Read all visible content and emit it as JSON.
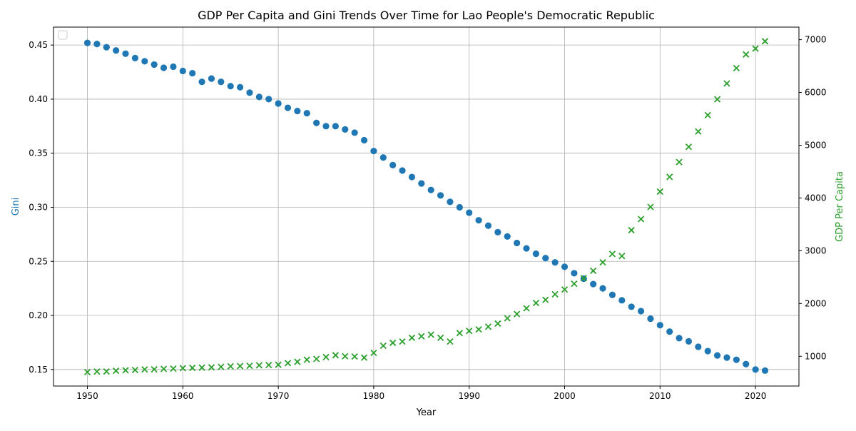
{
  "chart_data": {
    "type": "scatter",
    "title": "GDP Per Capita and Gini Trends Over Time for Lao People's Democratic Republic",
    "xlabel": "Year",
    "ylabel_left": "Gini",
    "ylabel_right": "GDP Per Capita",
    "xlim": [
      1946.45,
      2024.55
    ],
    "ylim_left": [
      0.1347,
      0.4666
    ],
    "ylim_right": [
      436,
      7238
    ],
    "x_ticks": [
      1950,
      1960,
      1970,
      1980,
      1990,
      2000,
      2010,
      2020
    ],
    "y_left_ticks": [
      0.15,
      0.2,
      0.25,
      0.3,
      0.35,
      0.4,
      0.45
    ],
    "y_right_ticks": [
      1000,
      2000,
      3000,
      4000,
      5000,
      6000,
      7000
    ],
    "grid": true,
    "legend": "top-left (empty)",
    "x": [
      1950,
      1951,
      1952,
      1953,
      1954,
      1955,
      1956,
      1957,
      1958,
      1959,
      1960,
      1961,
      1962,
      1963,
      1964,
      1965,
      1966,
      1967,
      1968,
      1969,
      1970,
      1971,
      1972,
      1973,
      1974,
      1975,
      1976,
      1977,
      1978,
      1979,
      1980,
      1981,
      1982,
      1983,
      1984,
      1985,
      1986,
      1987,
      1988,
      1989,
      1990,
      1991,
      1992,
      1993,
      1994,
      1995,
      1996,
      1997,
      1998,
      1999,
      2000,
      2001,
      2002,
      2003,
      2004,
      2005,
      2006,
      2007,
      2008,
      2009,
      2010,
      2011,
      2012,
      2013,
      2014,
      2015,
      2016,
      2017,
      2018,
      2019,
      2020,
      2021
    ],
    "series": [
      {
        "axis": "left",
        "marker": "circle",
        "color": "#1f77b4",
        "values": [
          0.452,
          0.451,
          0.448,
          0.445,
          0.442,
          0.438,
          0.435,
          0.432,
          0.429,
          0.43,
          0.426,
          0.424,
          0.416,
          0.419,
          0.416,
          0.412,
          0.411,
          0.406,
          0.402,
          0.4,
          0.396,
          0.392,
          0.389,
          0.387,
          0.378,
          0.375,
          0.375,
          0.372,
          0.369,
          0.362,
          0.352,
          0.346,
          0.339,
          0.334,
          0.328,
          0.322,
          0.316,
          0.311,
          0.305,
          0.3,
          0.295,
          0.288,
          0.283,
          0.277,
          0.273,
          0.267,
          0.262,
          0.257,
          0.253,
          0.249,
          0.245,
          0.239,
          0.234,
          0.229,
          0.225,
          0.219,
          0.214,
          0.208,
          0.204,
          0.197,
          0.191,
          0.185,
          0.179,
          0.176,
          0.171,
          0.167,
          0.163,
          0.161,
          0.159,
          0.155,
          0.15,
          0.149
        ]
      },
      {
        "axis": "right",
        "marker": "x",
        "color": "#2ca02c",
        "values": [
          700,
          710,
          712,
          725,
          735,
          740,
          750,
          752,
          760,
          765,
          775,
          780,
          785,
          790,
          800,
          810,
          815,
          820,
          830,
          835,
          840,
          870,
          895,
          935,
          950,
          985,
          1020,
          1000,
          995,
          975,
          1065,
          1200,
          1255,
          1280,
          1350,
          1380,
          1410,
          1350,
          1280,
          1440,
          1480,
          1510,
          1560,
          1620,
          1720,
          1800,
          1910,
          2010,
          2070,
          2175,
          2265,
          2375,
          2480,
          2620,
          2780,
          2940,
          2900,
          3390,
          3600,
          3830,
          4120,
          4400,
          4680,
          4970,
          5260,
          5570,
          5870,
          6170,
          6460,
          6720,
          6830,
          6970
        ]
      }
    ]
  },
  "colors": {
    "gini": "#1f77b4",
    "gdp": "#2ca02c",
    "grid": "#b0b0b0",
    "axis": "#000000"
  }
}
